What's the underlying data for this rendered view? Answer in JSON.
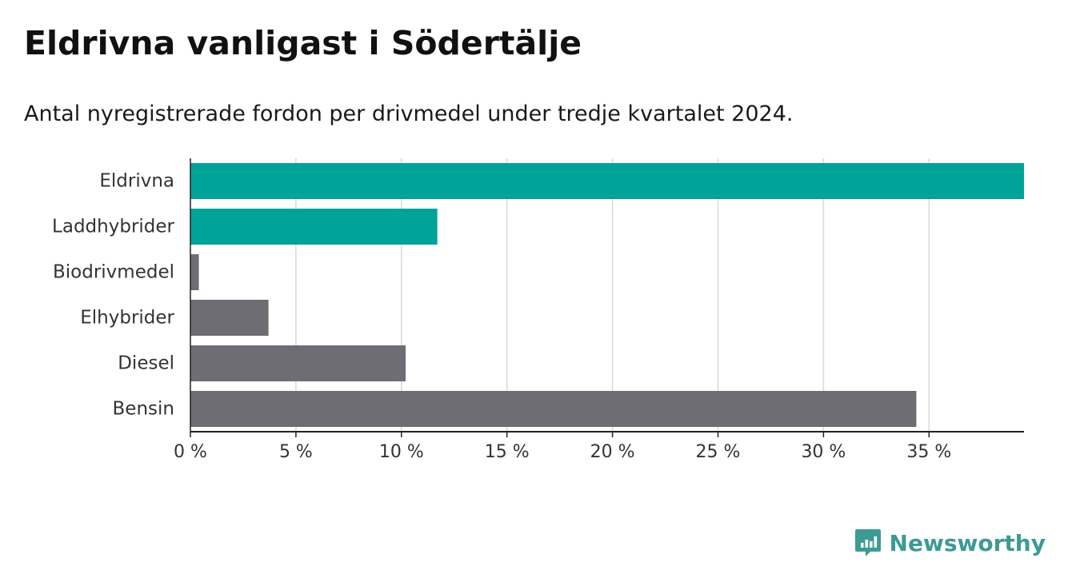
{
  "header": {
    "title": "Eldrivna vanligast i Södertälje",
    "subtitle": "Antal nyregistrerade fordon per drivmedel under tredje kvartalet 2024."
  },
  "chart_data": {
    "type": "bar",
    "orientation": "horizontal",
    "title": "Eldrivna vanligast i Södertälje",
    "subtitle": "Antal nyregistrerade fordon per drivmedel under tredje kvartalet 2024.",
    "xlabel": "",
    "ylabel": "",
    "categories": [
      "Eldrivna",
      "Laddhybrider",
      "Biodrivmedel",
      "Elhybrider",
      "Diesel",
      "Bensin"
    ],
    "values": [
      39.5,
      11.7,
      0.4,
      3.7,
      10.2,
      34.4
    ],
    "bar_colors": [
      "#00a398",
      "#00a398",
      "#6e6d74",
      "#6e6d74",
      "#6e6d74",
      "#6e6d74"
    ],
    "xlim": [
      0,
      39.5
    ],
    "x_ticks": [
      0,
      5,
      10,
      15,
      20,
      25,
      30,
      35
    ],
    "x_tick_labels": [
      "0 %",
      "5 %",
      "10 %",
      "15 %",
      "20 %",
      "25 %",
      "30 %",
      "35 %"
    ],
    "grid": true
  },
  "branding": {
    "name": "Newsworthy",
    "icon": "newsworthy-chart-bubble-icon",
    "color": "#3d9a94"
  },
  "colors": {
    "grid": "#d9d9d9",
    "axis": "#222222",
    "label": "#333333"
  }
}
